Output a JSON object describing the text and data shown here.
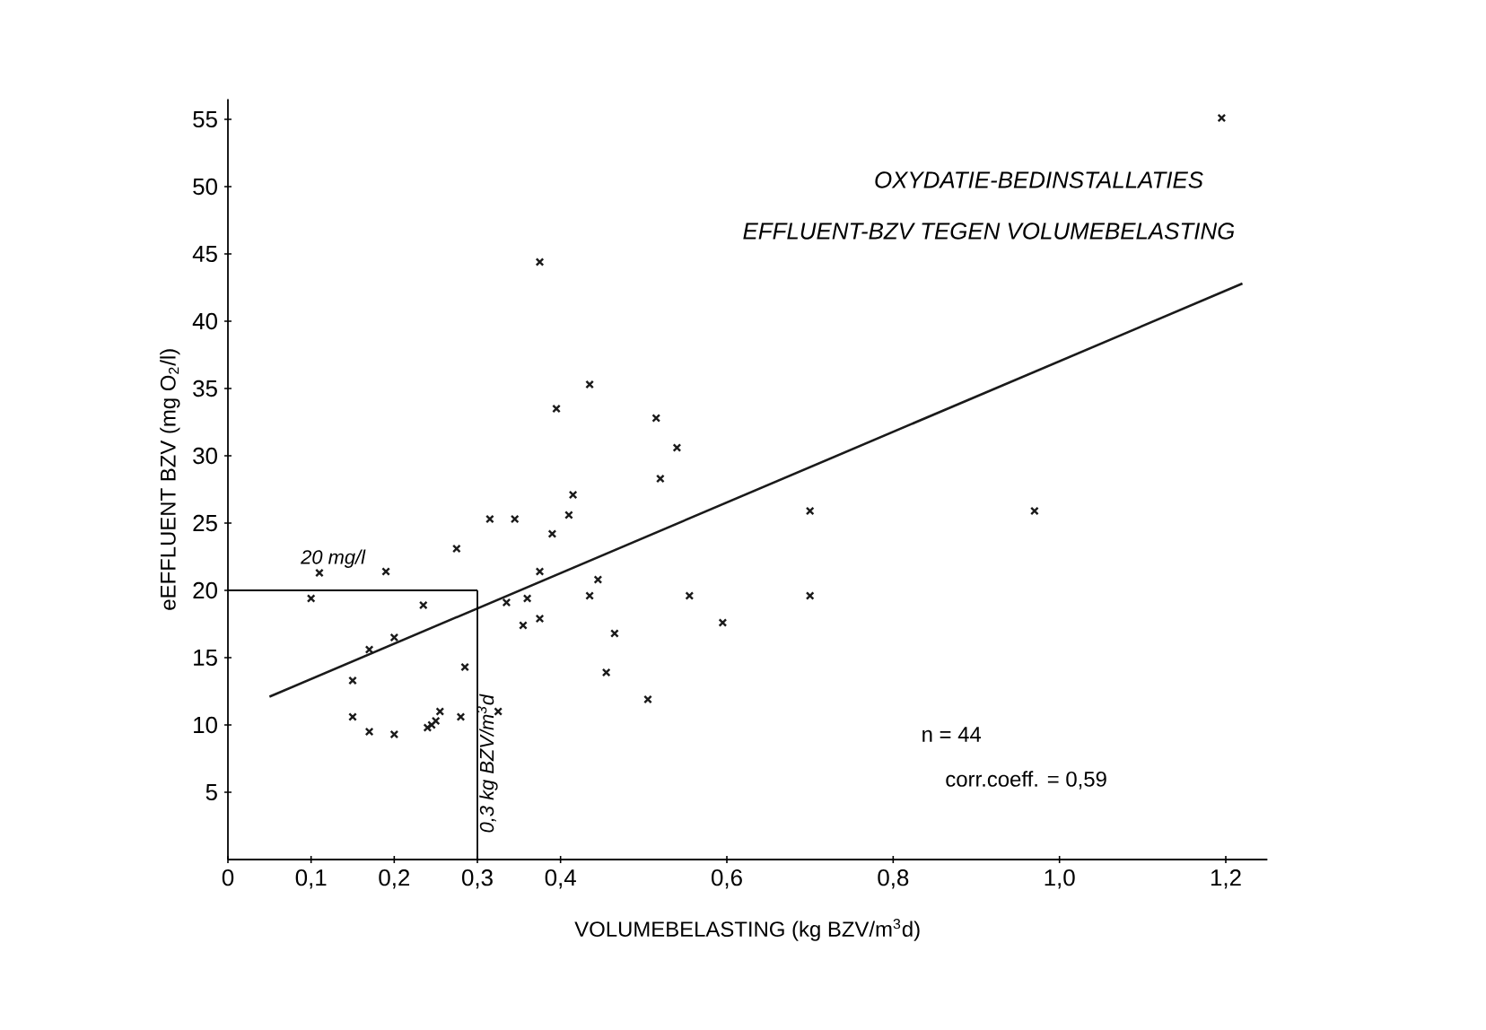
{
  "chart_data": {
    "type": "scatter",
    "title": "OXYDATIE-BEDINSTALLATIES",
    "subtitle": "EFFLUENT-BZV TEGEN VOLUMEBELASTING",
    "xlabel": "VOLUMEBELASTING (kg BZV/m$^{3}$d)",
    "ylabel": "eEFFLUENT BZV (mg O$_{2}$/l)",
    "annotations": [
      "n = 44",
      "corr.coeff. = 0,59"
    ],
    "xlim": [
      0,
      1.25
    ],
    "ylim": [
      0,
      56.5
    ],
    "xticks": [
      {
        "value": 0,
        "label": "0"
      },
      {
        "value": 0.1,
        "label": "0,1"
      },
      {
        "value": 0.2,
        "label": "0,2"
      },
      {
        "value": 0.3,
        "label": "0,3"
      },
      {
        "value": 0.4,
        "label": "0,4"
      },
      {
        "value": 0.6,
        "label": "0,6"
      },
      {
        "value": 0.8,
        "label": "0,8"
      },
      {
        "value": 1.0,
        "label": "1,0"
      },
      {
        "value": 1.2,
        "label": "1,2"
      }
    ],
    "yticks": [
      5,
      10,
      15,
      20,
      25,
      30,
      35,
      40,
      45,
      50,
      55
    ],
    "ref_lines": [
      {
        "axis": "y",
        "value": 20,
        "label": "20 mg/l",
        "color": "#000000"
      },
      {
        "axis": "x",
        "value": 0.3,
        "label": "0,3 kg BZV/m$^{3}$d",
        "color": "#000000"
      }
    ],
    "grid": false,
    "marker": "cross",
    "series": [
      {
        "color": "#1a1a1a",
        "x": [
          0.1,
          0.11,
          0.19,
          0.15,
          0.15,
          0.17,
          0.17,
          0.2,
          0.2,
          0.235,
          0.24,
          0.245,
          0.25,
          0.255,
          0.28,
          0.275,
          0.285,
          0.315,
          0.345,
          0.325,
          0.335,
          0.355,
          0.36,
          0.375,
          0.375,
          0.39,
          0.41,
          0.435,
          0.445,
          0.465,
          0.455,
          0.505,
          0.555,
          0.595,
          0.375,
          0.395,
          0.435,
          0.415,
          0.515,
          0.54,
          0.52,
          1.195,
          0.7,
          0.97,
          0.7
        ],
        "values": [
          19.4,
          21.3,
          21.4,
          13.3,
          10.6,
          15.6,
          9.5,
          16.5,
          9.3,
          18.9,
          9.8,
          10.0,
          10.3,
          11.0,
          10.6,
          23.1,
          14.3,
          25.3,
          25.3,
          11.0,
          19.1,
          17.4,
          19.4,
          21.4,
          17.9,
          24.2,
          25.6,
          19.6,
          20.8,
          16.8,
          13.9,
          11.9,
          19.6,
          17.6,
          44.4,
          33.5,
          35.3,
          27.1,
          32.8,
          30.6,
          28.3,
          55.1,
          25.9,
          25.9,
          19.6
        ]
      },
      {
        "type": "line",
        "color": "#1a1a1a",
        "line_style": "solid",
        "marker": "none",
        "x": [
          0.05,
          1.22
        ],
        "values": [
          12.1,
          42.8
        ]
      }
    ]
  }
}
